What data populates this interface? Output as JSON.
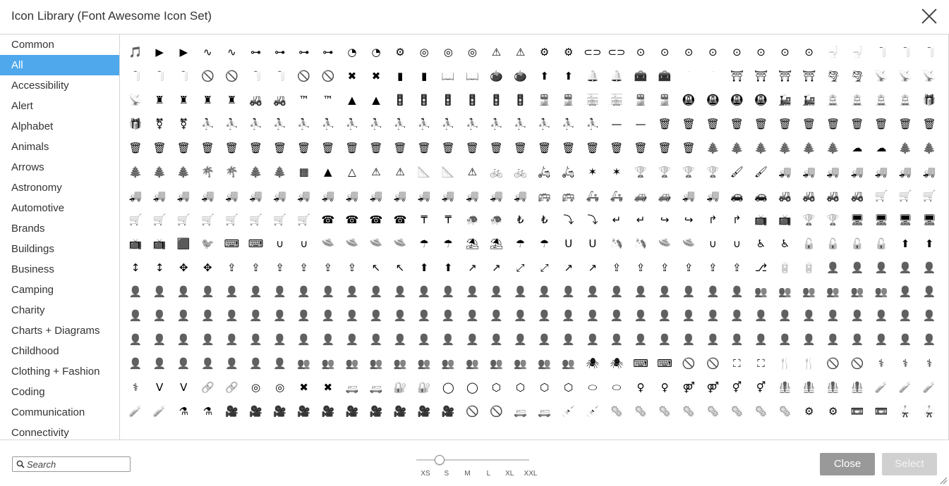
{
  "dialog": {
    "title": "Icon Library (Font Awesome Icon Set)"
  },
  "sidebar": {
    "items": [
      {
        "label": "Common"
      },
      {
        "label": "All",
        "active": true
      },
      {
        "label": "Accessibility"
      },
      {
        "label": "Alert"
      },
      {
        "label": "Alphabet"
      },
      {
        "label": "Animals"
      },
      {
        "label": "Arrows"
      },
      {
        "label": "Astronomy"
      },
      {
        "label": "Automotive"
      },
      {
        "label": "Brands"
      },
      {
        "label": "Buildings"
      },
      {
        "label": "Business"
      },
      {
        "label": "Camping"
      },
      {
        "label": "Charity"
      },
      {
        "label": "Charts + Diagrams"
      },
      {
        "label": "Childhood"
      },
      {
        "label": "Clothing + Fashion"
      },
      {
        "label": "Coding"
      },
      {
        "label": "Communication"
      },
      {
        "label": "Connectivity"
      }
    ]
  },
  "icon_grid": {
    "rows": [
      [
        "🎵",
        "▶",
        "▶",
        "∿",
        "∿",
        "⊶",
        "⊶",
        "⊶",
        "⊶",
        "◔",
        "◔",
        "⚙",
        "◎",
        "◎",
        "◎",
        "⚠",
        "⚠",
        "⚙",
        "⚙",
        "⊂⊃",
        "⊂⊃",
        "⊙",
        "⊙",
        "⊙",
        "⊙",
        "⊙",
        "⊙",
        "⊙",
        "⊙",
        "🚽",
        "🚽",
        "🧻",
        "🧻",
        "🧻"
      ],
      [
        "🧻",
        "🧻",
        "🧻",
        "🚫",
        "🚫",
        "🧻",
        "🧻",
        "🚫",
        "🚫",
        "✖",
        "✖",
        "▮",
        "▮",
        "📖",
        "📖",
        "🍅",
        "🍅",
        "⬆",
        "⬆",
        "🔔",
        "🔔",
        "🧰",
        "🧰",
        "🦷",
        "🦷",
        "⛩",
        "⛩",
        "⛩",
        "⛩",
        "🌪",
        "🌪",
        "📡",
        "📡",
        "📡"
      ],
      [
        "📡",
        "♜",
        "♜",
        "♜",
        "♜",
        "🚜",
        "🚜",
        "™",
        "™",
        "▲",
        "▲",
        "🚦",
        "🚦",
        "🚦",
        "🚦",
        "🚦",
        "🚦",
        "🚆",
        "🚆",
        "🚋",
        "🚋",
        "🚆",
        "🚆",
        "🚇",
        "🚇",
        "🚇",
        "🚇",
        "🚂",
        "🚂",
        "🚊",
        "🚊",
        "🚊",
        "🚊",
        "🎁"
      ],
      [
        "🎁",
        "⚧",
        "⚧",
        "⛹",
        "⛹",
        "⛹",
        "⛹",
        "⛹",
        "⛹",
        "⛹",
        "⛹",
        "⛹",
        "⛹",
        "⛹",
        "⛹",
        "⛹",
        "⛹",
        "⛹",
        "⛹",
        "⛹",
        "—",
        "—",
        "🗑",
        "🗑",
        "🗑",
        "🗑",
        "🗑",
        "🗑",
        "🗑",
        "🗑",
        "🗑",
        "🗑",
        "🗑",
        "🗑"
      ],
      [
        "🗑",
        "🗑",
        "🗑",
        "🗑",
        "🗑",
        "🗑",
        "🗑",
        "🗑",
        "🗑",
        "🗑",
        "🗑",
        "🗑",
        "🗑",
        "🗑",
        "🗑",
        "🗑",
        "🗑",
        "🗑",
        "🗑",
        "🗑",
        "🗑",
        "🗑",
        "🗑",
        "🗑",
        "🌲",
        "🌲",
        "🌲",
        "🌲",
        "🌲",
        "🌲",
        "☁",
        "☁",
        "🌲",
        "🌲"
      ],
      [
        "🌲",
        "🌲",
        "🌲",
        "🌴",
        "🌴",
        "🌲",
        "🌲",
        "▦",
        "▲",
        "△",
        "⚠",
        "⚠",
        "📐",
        "📐",
        "⚠",
        "🚲",
        "🚲",
        "🛵",
        "🛵",
        "✶",
        "✶",
        "🏆",
        "🏆",
        "🏆",
        "🏆",
        "🖌",
        "🖌",
        "🚚",
        "🚚",
        "🚚",
        "🚚",
        "🚚",
        "🚚",
        "🚚"
      ],
      [
        "🚚",
        "🚚",
        "🚚",
        "🚚",
        "🚚",
        "🚚",
        "🚚",
        "🚚",
        "🚚",
        "🚚",
        "🚚",
        "🚚",
        "🚚",
        "🚚",
        "🚚",
        "🚚",
        "🚚",
        "🚌",
        "🚌",
        "🚑",
        "🚑",
        "🚙",
        "🚙",
        "🚚",
        "🚚",
        "🚗",
        "🚗",
        "🚜",
        "🚜",
        "🚜",
        "🚜",
        "🛒",
        "🛒",
        "🛒"
      ],
      [
        "🛒",
        "🛒",
        "🛒",
        "🛒",
        "🛒",
        "🛒",
        "🛒",
        "🛒",
        "☎",
        "☎",
        "☎",
        "☎",
        "₸",
        "₸",
        "🐢",
        "🐢",
        "₺",
        "₺",
        "⤵",
        "⤵",
        "↵",
        "↵",
        "↪",
        "↪",
        "↱",
        "↱",
        "📺",
        "📺",
        "🏆",
        "🏆",
        "🖥",
        "🖥",
        "🖥",
        "🖥"
      ],
      [
        "📺",
        "📺",
        "🟪",
        "🐦",
        "⌨",
        "⌨",
        "∪",
        "∪",
        "🛸",
        "🛸",
        "🛸",
        "🛸",
        "☂",
        "☂",
        "⛱",
        "⛱",
        "☂",
        "☂",
        "U",
        "U",
        "🦄",
        "🦄",
        "🛸",
        "🛸",
        "∪",
        "∪",
        "♿",
        "♿",
        "🔓",
        "🔓",
        "🔓",
        "🔓",
        "⬆",
        "⬆"
      ],
      [
        "↕",
        "↕",
        "✥",
        "✥",
        "⇪",
        "⇪",
        "⇪",
        "⇪",
        "⇪",
        "⇪",
        "↖",
        "↖",
        "⬆",
        "⬆",
        "↗",
        "↗",
        "⤢",
        "⤢",
        "↗",
        "↗",
        "⇪",
        "⇪",
        "⇪",
        "⇪",
        "⇪",
        "⇪",
        "⎇",
        "🔋",
        "🔋",
        "👤",
        "👤",
        "👤",
        "👤",
        "👤"
      ],
      [
        "👤",
        "👤",
        "👤",
        "👤",
        "👤",
        "👤",
        "👤",
        "👤",
        "👤",
        "👤",
        "👤",
        "👤",
        "👤",
        "👤",
        "👤",
        "👤",
        "👤",
        "👤",
        "👤",
        "👤",
        "👤",
        "👤",
        "👤",
        "👤",
        "👤",
        "👤",
        "👥",
        "👥",
        "👥",
        "👥",
        "👥",
        "👥",
        "👤",
        "👤"
      ],
      [
        "👤",
        "👤",
        "👤",
        "👤",
        "👤",
        "👤",
        "👤",
        "👤",
        "👤",
        "👤",
        "👤",
        "👤",
        "👤",
        "👤",
        "👤",
        "👤",
        "👤",
        "👤",
        "👤",
        "👤",
        "👤",
        "👤",
        "👤",
        "👤",
        "👤",
        "👤",
        "👤",
        "👤",
        "👤",
        "👤",
        "👤",
        "👤",
        "👤",
        "👤"
      ],
      [
        "👤",
        "👤",
        "👤",
        "👤",
        "👤",
        "👤",
        "👤",
        "👤",
        "👤",
        "👤",
        "👤",
        "👤",
        "👤",
        "👤",
        "👤",
        "👤",
        "👤",
        "👤",
        "👤",
        "👤",
        "👤",
        "👤",
        "👤",
        "👤",
        "👤",
        "👤",
        "👤",
        "👤",
        "👤",
        "👤",
        "👤",
        "👤",
        "👤",
        "👤"
      ],
      [
        "👤",
        "👤",
        "👤",
        "👤",
        "👤",
        "👤",
        "👤",
        "👥",
        "👥",
        "👥",
        "👥",
        "👥",
        "👥",
        "👥",
        "👥",
        "👥",
        "👥",
        "👥",
        "👥",
        "🕷",
        "🕷",
        "⌨",
        "⌨",
        "🚫",
        "🚫",
        "⛶",
        "⛶",
        "🍴",
        "🍴",
        "🚫",
        "🚫",
        "⚕",
        "⚕",
        "⚕"
      ],
      [
        "⚕",
        "V",
        "V",
        "🔗",
        "🔗",
        "◎",
        "◎",
        "✖",
        "✖",
        "🚐",
        "🚐",
        "🔐",
        "🔐",
        "◯",
        "◯",
        "⬡",
        "⬡",
        "⬡",
        "⬡",
        "⬭",
        "⬭",
        "♀",
        "♀",
        "⚤",
        "⚤",
        "⚥",
        "⚥",
        "🦺",
        "🦺",
        "🦺",
        "🦺",
        "🧪",
        "🧪",
        "🧪"
      ],
      [
        "🧪",
        "🧪",
        "⚗",
        "⚗",
        "🎥",
        "🎥",
        "🎥",
        "🎥",
        "🎥",
        "🎥",
        "🎥",
        "🎥",
        "🎥",
        "🎥",
        "🚫",
        "🚫",
        "🚐",
        "🚐",
        "💉",
        "💉",
        "🦠",
        "🦠",
        "🦠",
        "🦠",
        "🦠",
        "🦠",
        "🦠",
        "🦠",
        "⚙",
        "⚙",
        "📼",
        "📼",
        "🥋",
        "🥋"
      ]
    ]
  },
  "footer": {
    "search_placeholder": "Search",
    "size_options": [
      "XS",
      "S",
      "M",
      "L",
      "XL",
      "XXL"
    ],
    "selected_size": "S",
    "close_label": "Close",
    "select_label": "Select"
  }
}
